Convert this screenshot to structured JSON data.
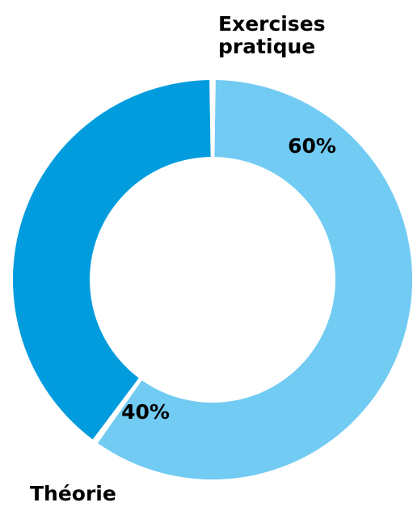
{
  "chart_data": {
    "type": "pie",
    "variant": "donut",
    "title": "",
    "series": [
      {
        "name": "Exercises pratique",
        "value": 60,
        "label": "60%",
        "color": "#72CBF3"
      },
      {
        "name": "Théorie",
        "value": 40,
        "label": "40%",
        "color": "#009CDE"
      }
    ]
  }
}
